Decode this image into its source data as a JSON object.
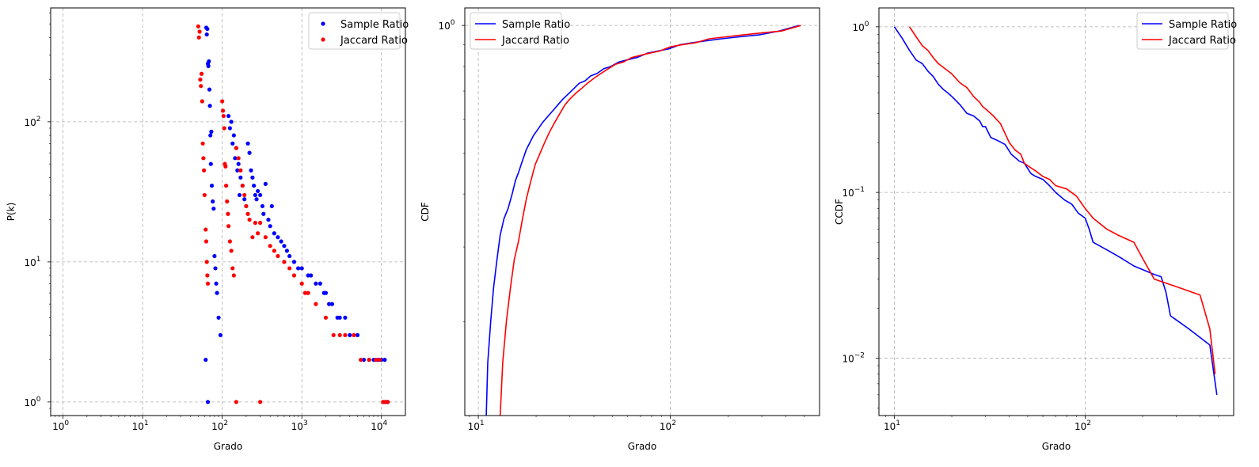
{
  "colors": {
    "sample": "#0000ff",
    "jaccard": "#ff0000",
    "grid": "#b0b0b0"
  },
  "chart_data": [
    {
      "type": "scatter",
      "xscale": "log",
      "yscale": "log",
      "xlim": [
        0.7,
        20000
      ],
      "ylim": [
        0.8,
        650
      ],
      "xlabel": "Grado",
      "ylabel": "P(k)",
      "grid": true,
      "legend_position": "top-right",
      "xticks": [
        {
          "v": 1,
          "b": "10",
          "e": "0"
        },
        {
          "v": 10,
          "b": "10",
          "e": "1"
        },
        {
          "v": 100,
          "b": "10",
          "e": "2"
        },
        {
          "v": 1000,
          "b": "10",
          "e": "3"
        },
        {
          "v": 10000,
          "b": "10",
          "e": "4"
        }
      ],
      "yticks": [
        {
          "v": 1,
          "b": "10",
          "e": "0"
        },
        {
          "v": 10,
          "b": "10",
          "e": "1"
        },
        {
          "v": 100,
          "b": "10",
          "e": "2"
        }
      ],
      "series": [
        {
          "name": "Sample Ratio",
          "color": "#0000ff",
          "points": [
            [
              63,
              470
            ],
            [
              65,
              460
            ],
            [
              64,
              420
            ],
            [
              66,
              260
            ],
            [
              68,
              270
            ],
            [
              67,
              250
            ],
            [
              69,
              170
            ],
            [
              70,
              130
            ],
            [
              71,
              80
            ],
            [
              73,
              85
            ],
            [
              72,
              50
            ],
            [
              74,
              35
            ],
            [
              76,
              27
            ],
            [
              78,
              24
            ],
            [
              80,
              11
            ],
            [
              82,
              9
            ],
            [
              84,
              7
            ],
            [
              86,
              6
            ],
            [
              90,
              4
            ],
            [
              95,
              3
            ],
            [
              62,
              2
            ],
            [
              66,
              1
            ],
            [
              120,
              110
            ],
            [
              130,
              100
            ],
            [
              125,
              90
            ],
            [
              140,
              80
            ],
            [
              135,
              70
            ],
            [
              150,
              65
            ],
            [
              145,
              55
            ],
            [
              160,
              50
            ],
            [
              155,
              45
            ],
            [
              170,
              40
            ],
            [
              180,
              35
            ],
            [
              165,
              30
            ],
            [
              190,
              28
            ],
            [
              200,
              25
            ],
            [
              210,
              70
            ],
            [
              220,
              60
            ],
            [
              230,
              45
            ],
            [
              240,
              40
            ],
            [
              250,
              35
            ],
            [
              260,
              30
            ],
            [
              270,
              28
            ],
            [
              280,
              32
            ],
            [
              300,
              30
            ],
            [
              320,
              25
            ],
            [
              350,
              36
            ],
            [
              330,
              22
            ],
            [
              380,
              20
            ],
            [
              400,
              18
            ],
            [
              420,
              25
            ],
            [
              450,
              16
            ],
            [
              500,
              15
            ],
            [
              550,
              14
            ],
            [
              600,
              13
            ],
            [
              650,
              12
            ],
            [
              700,
              11
            ],
            [
              800,
              10
            ],
            [
              900,
              9
            ],
            [
              1000,
              9
            ],
            [
              1200,
              8
            ],
            [
              1300,
              8
            ],
            [
              1500,
              7
            ],
            [
              1700,
              7
            ],
            [
              1900,
              6
            ],
            [
              2000,
              6
            ],
            [
              2200,
              5
            ],
            [
              2400,
              5
            ],
            [
              2800,
              4
            ],
            [
              3000,
              4
            ],
            [
              3500,
              4
            ],
            [
              4000,
              3
            ],
            [
              5000,
              3
            ],
            [
              6000,
              2
            ],
            [
              7000,
              2
            ],
            [
              8000,
              2
            ],
            [
              9000,
              2
            ],
            [
              10000,
              2
            ],
            [
              11000,
              2
            ],
            [
              11500,
              1
            ],
            [
              12000,
              1
            ],
            [
              10500,
              1
            ]
          ]
        },
        {
          "name": "Jaccard Ratio",
          "color": "#ff0000",
          "points": [
            [
              50,
              480
            ],
            [
              51,
              400
            ],
            [
              52,
              440
            ],
            [
              53,
              200
            ],
            [
              54,
              180
            ],
            [
              55,
              220
            ],
            [
              56,
              140
            ],
            [
              57,
              70
            ],
            [
              58,
              55
            ],
            [
              59,
              45
            ],
            [
              60,
              30
            ],
            [
              62,
              17
            ],
            [
              63,
              14
            ],
            [
              64,
              10
            ],
            [
              65,
              8
            ],
            [
              66,
              7
            ],
            [
              100,
              140
            ],
            [
              102,
              120
            ],
            [
              104,
              110
            ],
            [
              106,
              90
            ],
            [
              108,
              50
            ],
            [
              110,
              48
            ],
            [
              112,
              35
            ],
            [
              115,
              27
            ],
            [
              118,
              22
            ],
            [
              120,
              18
            ],
            [
              125,
              14
            ],
            [
              130,
              12
            ],
            [
              135,
              9
            ],
            [
              140,
              8
            ],
            [
              150,
              65
            ],
            [
              160,
              55
            ],
            [
              170,
              45
            ],
            [
              180,
              35
            ],
            [
              190,
              30
            ],
            [
              200,
              25
            ],
            [
              210,
              22
            ],
            [
              220,
              20
            ],
            [
              240,
              15
            ],
            [
              260,
              19
            ],
            [
              280,
              16
            ],
            [
              300,
              19
            ],
            [
              350,
              15
            ],
            [
              400,
              13
            ],
            [
              450,
              12
            ],
            [
              500,
              11
            ],
            [
              600,
              10
            ],
            [
              700,
              9
            ],
            [
              800,
              8
            ],
            [
              1000,
              7
            ],
            [
              1100,
              6
            ],
            [
              1200,
              6
            ],
            [
              1500,
              5
            ],
            [
              2000,
              4
            ],
            [
              2500,
              3
            ],
            [
              3000,
              3
            ],
            [
              3500,
              3
            ],
            [
              4500,
              3
            ],
            [
              5500,
              2
            ],
            [
              7000,
              2
            ],
            [
              8500,
              2
            ],
            [
              9500,
              2
            ],
            [
              10500,
              1
            ],
            [
              12000,
              1
            ],
            [
              11000,
              1
            ],
            [
              150,
              1
            ],
            [
              300,
              1
            ]
          ]
        }
      ]
    },
    {
      "type": "line",
      "xscale": "log",
      "yscale": "log",
      "xlim": [
        8.5,
        600
      ],
      "ylim": [
        0.12,
        1.1
      ],
      "xlabel": "Grado",
      "ylabel": "CDF",
      "grid": true,
      "legend_position": "top-left",
      "xticks": [
        {
          "v": 10,
          "b": "10",
          "e": "1"
        },
        {
          "v": 100,
          "b": "10",
          "e": "2"
        }
      ],
      "yticks": [
        {
          "v": 1,
          "b": "10",
          "e": "0"
        }
      ],
      "series": [
        {
          "name": "Sample Ratio",
          "color": "#0000ff",
          "x": [
            11.0,
            11.2,
            11.6,
            12.0,
            12.5,
            13.0,
            13.6,
            14.3,
            15.0,
            15.6,
            16.2,
            17.0,
            17.8,
            18.6,
            19.4,
            20.5,
            21.6,
            23.0,
            24.5,
            26.0,
            27.6,
            29.5,
            31.5,
            33.5,
            36.0,
            38.5,
            41.5,
            45.0,
            49.0,
            54.0,
            60.0,
            67.0,
            76.0,
            86.0,
            98.0,
            112.0,
            130.0,
            155.0,
            185.0,
            230.0,
            290.0,
            370.0,
            470.0
          ],
          "y": [
            0.12,
            0.16,
            0.2,
            0.24,
            0.28,
            0.32,
            0.35,
            0.37,
            0.4,
            0.43,
            0.45,
            0.48,
            0.51,
            0.53,
            0.55,
            0.57,
            0.59,
            0.61,
            0.63,
            0.65,
            0.67,
            0.69,
            0.71,
            0.73,
            0.74,
            0.76,
            0.77,
            0.79,
            0.8,
            0.82,
            0.83,
            0.84,
            0.86,
            0.87,
            0.88,
            0.9,
            0.91,
            0.92,
            0.93,
            0.94,
            0.95,
            0.97,
            1.0
          ]
        },
        {
          "name": "Jaccard Ratio",
          "color": "#ff0000",
          "x": [
            13.0,
            13.4,
            14.0,
            14.7,
            15.4,
            16.2,
            17.0,
            17.8,
            18.8,
            19.8,
            21.0,
            22.2,
            23.5,
            25.0,
            26.6,
            28.3,
            30.0,
            32.0,
            34.5,
            37.0,
            40.0,
            43.5,
            47.5,
            52.0,
            57.0,
            63.0,
            70.0,
            78.0,
            88.0,
            100.0,
            115.0,
            135.0,
            160.0,
            195.0,
            240.0,
            300.0,
            380.0,
            480.0
          ],
          "y": [
            0.12,
            0.16,
            0.2,
            0.24,
            0.28,
            0.31,
            0.35,
            0.39,
            0.43,
            0.47,
            0.5,
            0.53,
            0.56,
            0.59,
            0.62,
            0.65,
            0.67,
            0.69,
            0.71,
            0.73,
            0.75,
            0.77,
            0.79,
            0.81,
            0.82,
            0.84,
            0.85,
            0.86,
            0.87,
            0.89,
            0.9,
            0.91,
            0.93,
            0.94,
            0.95,
            0.96,
            0.97,
            1.0
          ]
        }
      ]
    },
    {
      "type": "line",
      "xscale": "log",
      "yscale": "log",
      "xlim": [
        8.3,
        600
      ],
      "ylim": [
        0.0045,
        1.3
      ],
      "xlabel": "Grado",
      "ylabel": "CCDF",
      "grid": true,
      "legend_position": "top-right",
      "xticks": [
        {
          "v": 10,
          "b": "10",
          "e": "1"
        },
        {
          "v": 100,
          "b": "10",
          "e": "2"
        }
      ],
      "yticks": [
        {
          "v": 0.01,
          "b": "10",
          "e": "−2"
        },
        {
          "v": 0.1,
          "b": "10",
          "e": "−1"
        },
        {
          "v": 1,
          "b": "10",
          "e": "0"
        }
      ],
      "series": [
        {
          "name": "Sample Ratio",
          "color": "#0000ff",
          "x": [
            10.0,
            11.0,
            12.0,
            13.0,
            14.0,
            15.0,
            16.0,
            17.0,
            18.0,
            19.0,
            20.0,
            22.0,
            24.0,
            26.0,
            28.0,
            29.0,
            30.0,
            32.0,
            35.0,
            38.0,
            41.0,
            45.0,
            48.0,
            52.0,
            55.0,
            60.0,
            65.0,
            70.0,
            78.0,
            85.0,
            92.0,
            100.0,
            105.0,
            110.0,
            130.0,
            150.0,
            180.0,
            230.0,
            250.0,
            265.0,
            280.0,
            300.0,
            350.0,
            450.0,
            490.0
          ],
          "y": [
            1.0,
            0.85,
            0.72,
            0.63,
            0.6,
            0.54,
            0.5,
            0.45,
            0.42,
            0.4,
            0.38,
            0.34,
            0.3,
            0.29,
            0.27,
            0.25,
            0.25,
            0.215,
            0.205,
            0.195,
            0.17,
            0.155,
            0.15,
            0.13,
            0.125,
            0.12,
            0.11,
            0.1,
            0.09,
            0.085,
            0.075,
            0.07,
            0.06,
            0.05,
            0.045,
            0.041,
            0.036,
            0.032,
            0.031,
            0.025,
            0.018,
            0.017,
            0.015,
            0.012,
            0.006
          ]
        },
        {
          "name": "Jaccard Ratio",
          "color": "#ff0000",
          "x": [
            12.0,
            13.0,
            14.0,
            15.0,
            16.0,
            17.0,
            18.0,
            20.0,
            22.0,
            24.0,
            26.0,
            28.0,
            29.0,
            30.0,
            33.0,
            36.0,
            40.0,
            43.0,
            46.0,
            48.0,
            50.0,
            55.0,
            60.0,
            65.0,
            70.0,
            80.0,
            90.0,
            100.0,
            110.0,
            130.0,
            150.0,
            180.0,
            200.0,
            230.0,
            300.0,
            400.0,
            450.0,
            480.0
          ],
          "y": [
            1.0,
            0.87,
            0.77,
            0.72,
            0.65,
            0.6,
            0.57,
            0.52,
            0.46,
            0.43,
            0.38,
            0.35,
            0.33,
            0.32,
            0.29,
            0.26,
            0.2,
            0.18,
            0.17,
            0.15,
            0.145,
            0.135,
            0.125,
            0.12,
            0.11,
            0.105,
            0.095,
            0.08,
            0.07,
            0.06,
            0.055,
            0.05,
            0.04,
            0.03,
            0.027,
            0.024,
            0.015,
            0.008
          ]
        }
      ]
    }
  ]
}
